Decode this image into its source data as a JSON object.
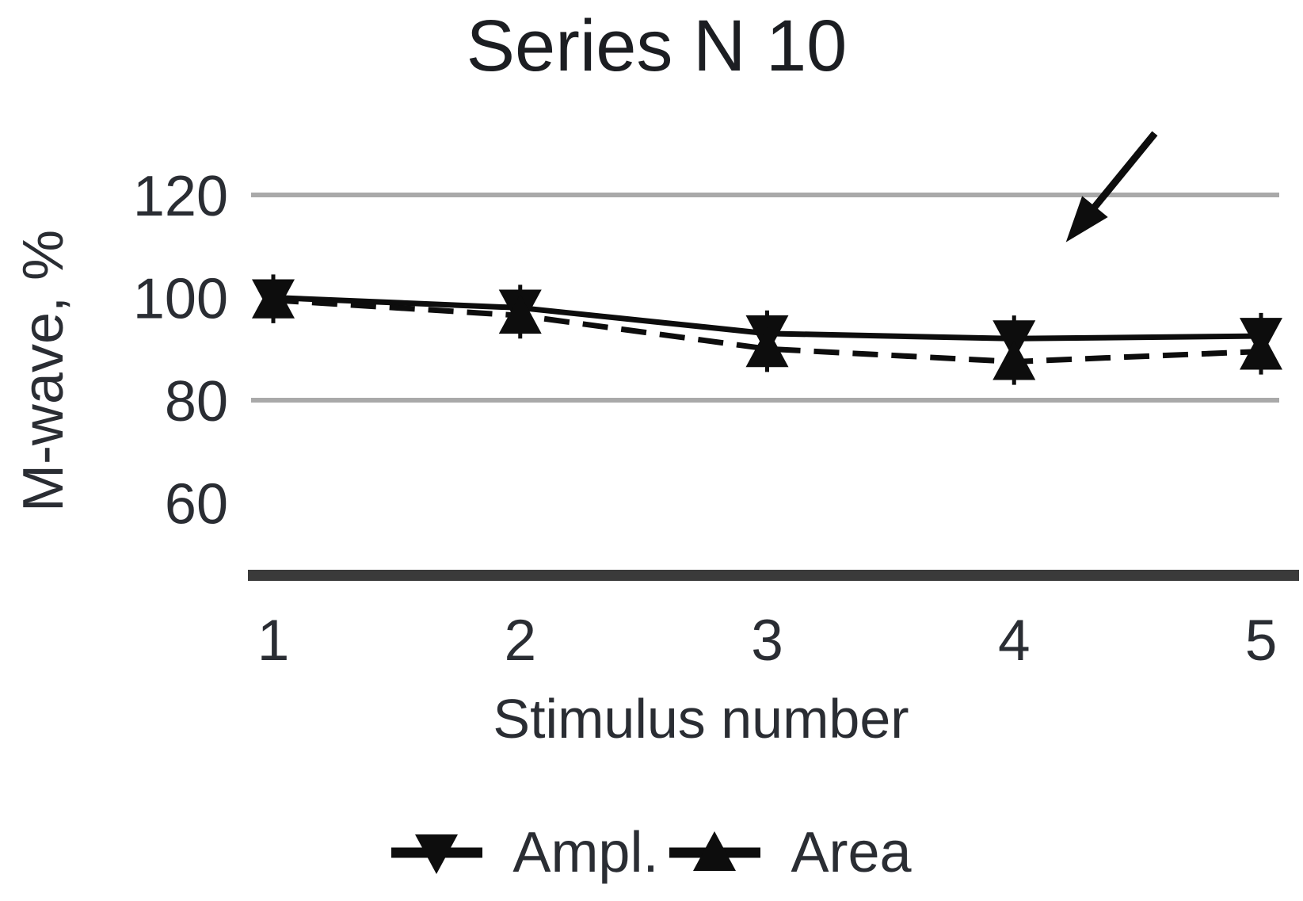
{
  "chart_data": {
    "type": "line",
    "title": "Series N 10",
    "xlabel": "Stimulus number",
    "ylabel": "M-wave, %",
    "x": [
      1,
      2,
      3,
      4,
      5
    ],
    "x_tick_labels": [
      "1",
      "2",
      "3",
      "4",
      "5"
    ],
    "y_ticks": [
      120,
      100,
      80,
      60
    ],
    "y_tick_labels": [
      "120",
      "100",
      "80",
      "60"
    ],
    "ylim": [
      46,
      130
    ],
    "gridlines": [
      120,
      80
    ],
    "grid": "horizontal-only",
    "legend_position": "bottom",
    "series": [
      {
        "name": "Ampl.",
        "marker": "triangle-down",
        "line_style": "solid",
        "values": [
          100,
          98,
          93,
          92,
          92.5
        ],
        "error": 4.5
      },
      {
        "name": "Area",
        "marker": "triangle-up",
        "line_style": "dashed",
        "values": [
          99.5,
          96.5,
          90,
          87.5,
          89.5
        ],
        "error": 4.5
      }
    ],
    "annotation_arrow": {
      "description": "black arrow pointing down-left, above data point 4, below the 120 gridline",
      "from": {
        "x": 4.57,
        "y": 132
      },
      "to": {
        "x": 4.21,
        "y": 110.8
      }
    }
  },
  "colors": {
    "background": "#ffffff",
    "text": "#2a2d33",
    "title_text": "#1c1e22",
    "data": "#0d0d0d",
    "gridline": "#a9a9a9",
    "axis_bar": "#3a3a3a"
  }
}
